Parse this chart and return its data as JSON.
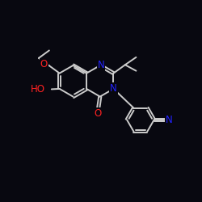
{
  "bg_color": "#080810",
  "bond_color": "#cccccc",
  "bond_width": 1.4,
  "atom_label_colors": {
    "O": "#ff2222",
    "N": "#2222ff",
    "HO": "#ff2222"
  },
  "font_size": 8.5,
  "scale": 1.0
}
